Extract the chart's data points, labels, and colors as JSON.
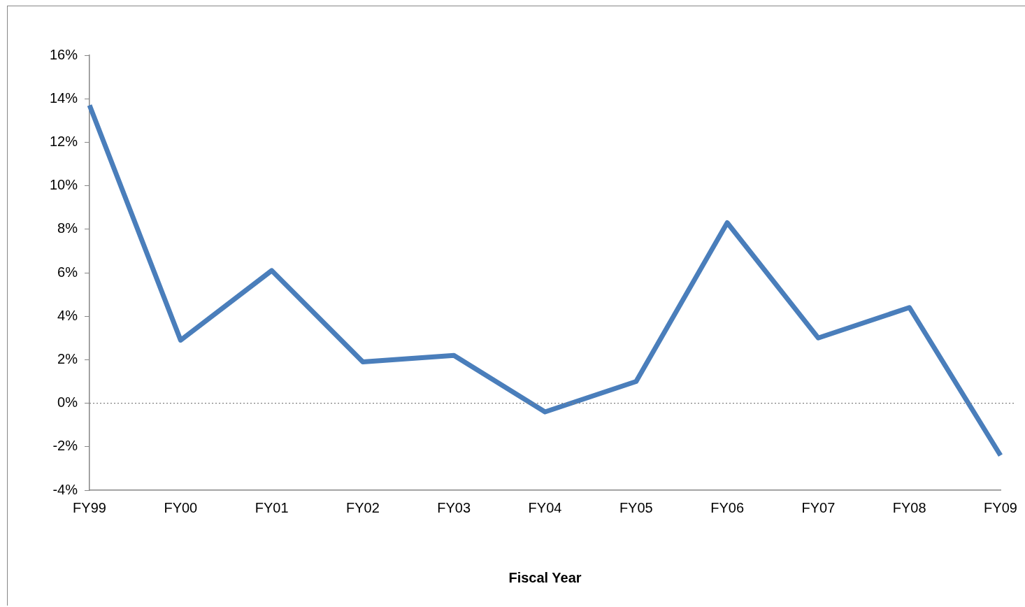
{
  "chart_data": {
    "type": "line",
    "xlabel": "Fiscal Year",
    "categories": [
      "FY99",
      "FY00",
      "FY01",
      "FY02",
      "FY03",
      "FY04",
      "FY05",
      "FY06",
      "FY07",
      "FY08",
      "FY09"
    ],
    "series": [
      {
        "color": "#4a7ebb",
        "values": [
          13.7,
          2.9,
          6.1,
          1.9,
          2.2,
          -0.4,
          1.0,
          8.3,
          3.0,
          4.4,
          -2.4
        ]
      }
    ],
    "ylim": [
      -4,
      16
    ],
    "yticks": [
      {
        "value": -4,
        "label": "-4%"
      },
      {
        "value": -2,
        "label": "-2%"
      },
      {
        "value": 0,
        "label": "0%"
      },
      {
        "value": 2,
        "label": "2%"
      },
      {
        "value": 4,
        "label": "4%"
      },
      {
        "value": 6,
        "label": "6%"
      },
      {
        "value": 8,
        "label": "8%"
      },
      {
        "value": 10,
        "label": "10%"
      },
      {
        "value": 12,
        "label": "12%"
      },
      {
        "value": 14,
        "label": "14%"
      },
      {
        "value": 16,
        "label": "16%"
      }
    ],
    "ref_lines": [
      {
        "axis": "y",
        "value": 0,
        "color": "#808080",
        "line_style": "dotted"
      }
    ],
    "grid": false,
    "legend": false,
    "marker": "none",
    "line_style": "solid"
  }
}
